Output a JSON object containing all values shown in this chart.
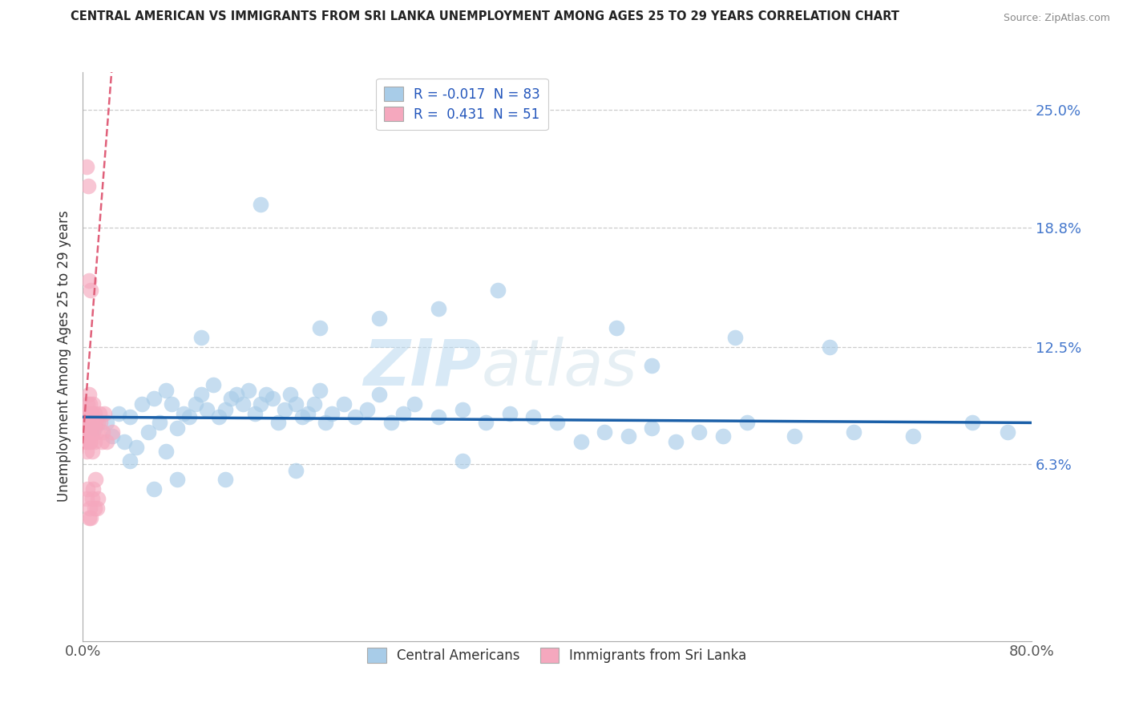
{
  "title": "CENTRAL AMERICAN VS IMMIGRANTS FROM SRI LANKA UNEMPLOYMENT AMONG AGES 25 TO 29 YEARS CORRELATION CHART",
  "source": "Source: ZipAtlas.com",
  "ylabel": "Unemployment Among Ages 25 to 29 years",
  "xlim": [
    0,
    80
  ],
  "ylim": [
    -3,
    27
  ],
  "ytick_vals": [
    6.3,
    12.5,
    18.8,
    25.0
  ],
  "ytick_labels": [
    "6.3%",
    "12.5%",
    "18.8%",
    "25.0%"
  ],
  "xtick_vals": [
    0,
    80
  ],
  "xtick_labels": [
    "0.0%",
    "80.0%"
  ],
  "legend_blue_label": "R = -0.017  N = 83",
  "legend_pink_label": "R =  0.431  N = 51",
  "watermark_zip": "ZIP",
  "watermark_atlas": "atlas",
  "blue_color": "#a8cce8",
  "blue_line_color": "#1a5fa8",
  "pink_color": "#f5a8be",
  "pink_line_color": "#e0607a",
  "background_color": "#ffffff",
  "grid_color": "#cccccc",
  "blue_scatter_x": [
    1.0,
    2.0,
    2.5,
    3.0,
    3.5,
    4.0,
    4.5,
    5.0,
    5.5,
    6.0,
    6.5,
    7.0,
    7.5,
    8.0,
    8.5,
    9.0,
    9.5,
    10.0,
    10.5,
    11.0,
    11.5,
    12.0,
    12.5,
    13.0,
    13.5,
    14.0,
    14.5,
    15.0,
    15.5,
    16.0,
    16.5,
    17.0,
    17.5,
    18.0,
    18.5,
    19.0,
    19.5,
    20.0,
    20.5,
    21.0,
    22.0,
    23.0,
    24.0,
    25.0,
    26.0,
    27.0,
    28.0,
    30.0,
    32.0,
    34.0,
    36.0,
    38.0,
    40.0,
    42.0,
    44.0,
    46.0,
    48.0,
    50.0,
    52.0,
    54.0,
    56.0,
    60.0,
    65.0,
    70.0,
    75.0,
    78.0,
    30.0,
    20.0,
    15.0,
    10.0,
    8.0,
    6.0,
    4.0,
    25.0,
    35.0,
    45.0,
    55.0,
    63.0,
    48.0,
    32.0,
    18.0,
    12.0,
    7.0
  ],
  "blue_scatter_y": [
    8.2,
    8.5,
    7.8,
    9.0,
    7.5,
    8.8,
    7.2,
    9.5,
    8.0,
    9.8,
    8.5,
    10.2,
    9.5,
    8.2,
    9.0,
    8.8,
    9.5,
    10.0,
    9.2,
    10.5,
    8.8,
    9.2,
    9.8,
    10.0,
    9.5,
    10.2,
    9.0,
    9.5,
    10.0,
    9.8,
    8.5,
    9.2,
    10.0,
    9.5,
    8.8,
    9.0,
    9.5,
    10.2,
    8.5,
    9.0,
    9.5,
    8.8,
    9.2,
    10.0,
    8.5,
    9.0,
    9.5,
    8.8,
    9.2,
    8.5,
    9.0,
    8.8,
    8.5,
    7.5,
    8.0,
    7.8,
    8.2,
    7.5,
    8.0,
    7.8,
    8.5,
    7.8,
    8.0,
    7.8,
    8.5,
    8.0,
    14.5,
    13.5,
    20.0,
    13.0,
    5.5,
    5.0,
    6.5,
    14.0,
    15.5,
    13.5,
    13.0,
    12.5,
    11.5,
    6.5,
    6.0,
    5.5,
    7.0
  ],
  "pink_scatter_x": [
    0.15,
    0.2,
    0.25,
    0.3,
    0.3,
    0.35,
    0.4,
    0.4,
    0.45,
    0.5,
    0.5,
    0.55,
    0.6,
    0.6,
    0.65,
    0.7,
    0.7,
    0.75,
    0.8,
    0.8,
    0.85,
    0.9,
    0.9,
    0.95,
    1.0,
    1.0,
    1.1,
    1.2,
    1.3,
    1.4,
    1.5,
    1.6,
    1.7,
    1.8,
    2.0,
    2.5,
    0.3,
    0.4,
    0.5,
    0.6,
    0.7,
    0.8,
    0.9,
    1.0,
    1.1,
    1.2,
    1.3,
    0.35,
    0.45,
    0.55,
    0.65
  ],
  "pink_scatter_y": [
    8.5,
    7.5,
    8.0,
    7.0,
    9.0,
    8.5,
    7.5,
    9.5,
    8.0,
    9.0,
    10.0,
    8.5,
    9.5,
    7.5,
    8.0,
    9.0,
    7.5,
    8.5,
    9.0,
    7.0,
    8.5,
    8.0,
    9.5,
    8.5,
    9.0,
    7.5,
    8.5,
    8.0,
    8.5,
    9.0,
    8.5,
    7.5,
    8.0,
    9.0,
    7.5,
    8.0,
    4.5,
    5.0,
    3.5,
    4.0,
    3.5,
    4.5,
    5.0,
    4.0,
    5.5,
    4.0,
    4.5,
    22.0,
    21.0,
    16.0,
    15.5
  ],
  "blue_R": -0.017,
  "blue_N": 83,
  "pink_R": 0.431,
  "pink_N": 51,
  "blue_line_y_at_x0": 8.8,
  "blue_line_y_at_x80": 8.5,
  "pink_line_slope": 8.0,
  "pink_line_intercept": 7.5
}
